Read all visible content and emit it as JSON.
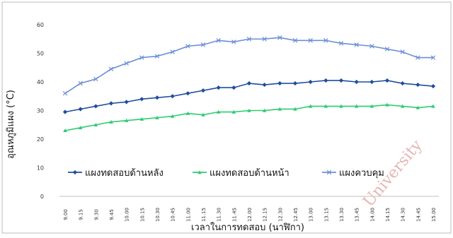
{
  "chart_data": {
    "type": "line",
    "xlabel": "เวลาในการทดสอบ (นาฬิกา)",
    "ylabel": "อุณหภูมิแผง (°C)",
    "ylim": [
      0,
      60
    ],
    "yticks": [
      "0",
      "10",
      "20",
      "30",
      "40",
      "50",
      "60"
    ],
    "grid": false,
    "legend_position": "center",
    "categories": [
      "9.00",
      "9.15",
      "9.30",
      "9.45",
      "10.00",
      "10.15",
      "10.30",
      "10.45",
      "11.00",
      "11.15",
      "11.30",
      "11.45",
      "12.00",
      "12.15",
      "12.30",
      "12.45",
      "13.00",
      "13.15",
      "13.30",
      "13.45",
      "14.00",
      "14.15",
      "14.30",
      "14.45",
      "15.00"
    ],
    "series": [
      {
        "name": "แผงทดสอบด้านหลัง",
        "color": "#1f4e9c",
        "marker": "diamond",
        "values": [
          29.5,
          30.5,
          31.5,
          32.5,
          33.0,
          34.0,
          34.5,
          35.0,
          36.0,
          37.0,
          38.0,
          38.0,
          39.5,
          39.0,
          39.5,
          39.5,
          40.0,
          40.5,
          40.5,
          40.0,
          40.0,
          40.5,
          39.5,
          39.0,
          38.5
        ]
      },
      {
        "name": "แผงทดสอบด้านหน้า",
        "color": "#2ecc71",
        "marker": "triangle",
        "values": [
          23.0,
          24.0,
          25.0,
          26.0,
          26.5,
          27.0,
          27.5,
          28.0,
          29.0,
          28.5,
          29.5,
          29.5,
          30.0,
          30.0,
          30.5,
          30.5,
          31.5,
          31.5,
          31.5,
          31.5,
          31.5,
          32.0,
          31.5,
          31.0,
          31.5
        ]
      },
      {
        "name": "แผงควบคุม",
        "color": "#6b8fd6",
        "marker": "x",
        "values": [
          36.0,
          39.5,
          41.0,
          44.5,
          46.5,
          48.5,
          49.0,
          50.5,
          52.5,
          53.0,
          54.5,
          54.0,
          55.0,
          55.0,
          55.5,
          54.5,
          54.5,
          54.5,
          53.5,
          53.0,
          52.5,
          51.5,
          50.5,
          48.5,
          48.5
        ]
      }
    ]
  },
  "watermark": "University"
}
